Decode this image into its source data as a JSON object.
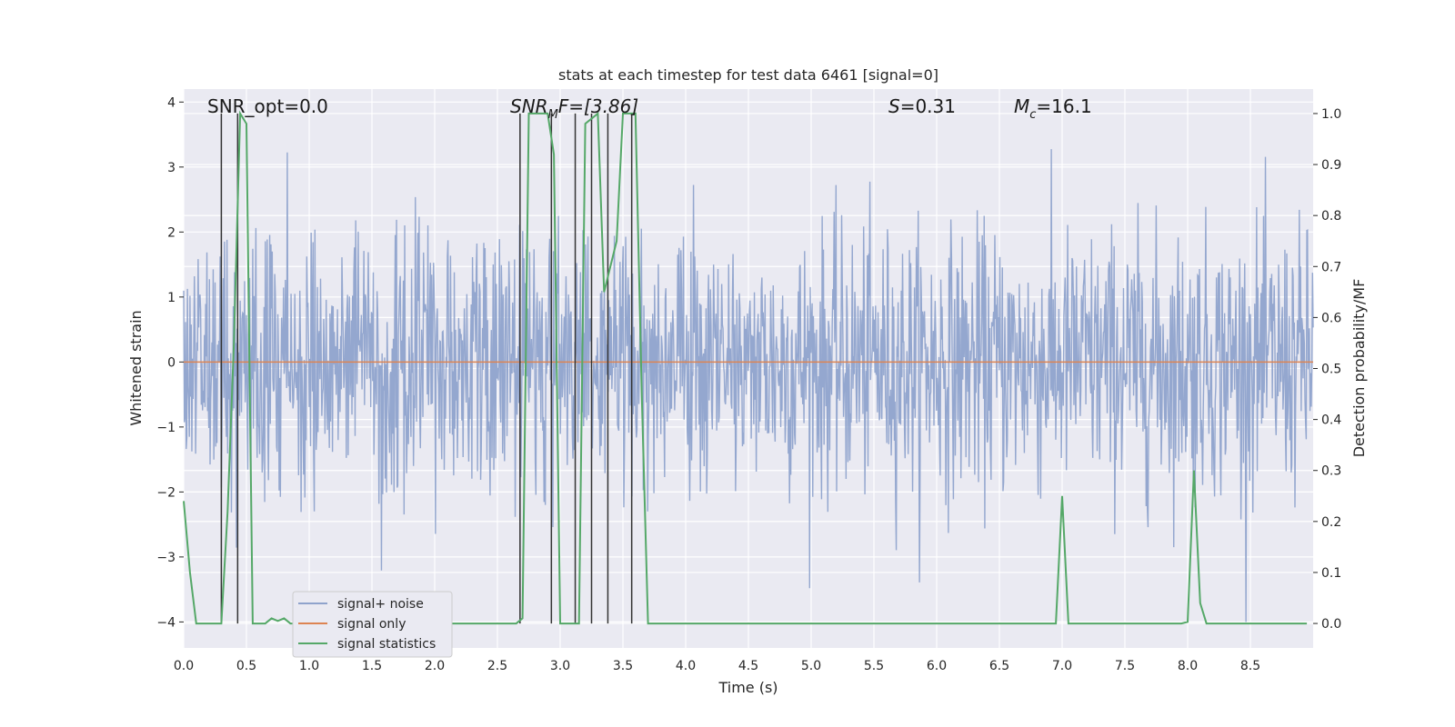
{
  "chart_data": {
    "type": "line",
    "title": "stats at each timestep for test data 6461 [signal=0]",
    "xlabel": "Time (s)",
    "ylabel": "Whitened strain",
    "ylabel_right": "Detection probability/MF",
    "xlim": [
      0.0,
      9.0
    ],
    "ylim": [
      -4.4,
      4.2
    ],
    "ylim_right": [
      -0.048,
      1.048
    ],
    "xticks": [
      "0.0",
      "0.5",
      "1.0",
      "1.5",
      "2.0",
      "2.5",
      "3.0",
      "3.5",
      "4.0",
      "4.5",
      "5.0",
      "5.5",
      "6.0",
      "6.5",
      "7.0",
      "7.5",
      "8.0",
      "8.5"
    ],
    "yticks": [
      "−4",
      "−3",
      "−2",
      "−1",
      "0",
      "1",
      "2",
      "3",
      "4"
    ],
    "yticks_right": [
      "0.0",
      "0.1",
      "0.2",
      "0.3",
      "0.4",
      "0.5",
      "0.6",
      "0.7",
      "0.8",
      "0.9",
      "1.0"
    ],
    "grid": true,
    "annotations": {
      "snr_opt": "SNR_opt=0.0",
      "snr_mf_main": "SNR",
      "snr_mf_sub": "M",
      "snr_mf_rest": "F=[3.86]",
      "s_main": "S",
      "s_rest": "=0.31",
      "mc_main": "M",
      "mc_sub": "c",
      "mc_rest": "=16.1"
    },
    "legend": {
      "placement": "lower-left",
      "entries": [
        "signal+ noise",
        "signal only",
        "signal statistics"
      ]
    },
    "series": [
      {
        "name": "signal+ noise",
        "color": "#8fa3cc",
        "kind": "whitened noise, approx. ±2 sigma, peaks to ±3.5",
        "n_samples": 1800,
        "sigma": 1.0
      },
      {
        "name": "signal only",
        "color": "#dd8452",
        "values_const": 0.0
      },
      {
        "name": "signal statistics",
        "color": "#55a868",
        "axis": "right",
        "x": [
          0.0,
          0.05,
          0.1,
          0.15,
          0.2,
          0.25,
          0.3,
          0.35,
          0.4,
          0.45,
          0.5,
          0.55,
          0.6,
          0.65,
          0.7,
          0.75,
          0.8,
          0.85,
          0.9,
          0.95,
          1.0,
          1.05,
          1.1,
          1.15,
          1.2,
          1.25,
          1.3,
          1.35,
          1.4,
          1.45,
          1.5,
          1.55,
          1.6,
          1.65,
          1.7,
          1.75,
          1.8,
          1.85,
          1.9,
          1.95,
          2.0,
          2.05,
          2.1,
          2.15,
          2.2,
          2.25,
          2.3,
          2.35,
          2.4,
          2.45,
          2.5,
          2.55,
          2.6,
          2.65,
          2.7,
          2.75,
          2.8,
          2.85,
          2.9,
          2.95,
          3.0,
          3.05,
          3.1,
          3.15,
          3.2,
          3.25,
          3.3,
          3.35,
          3.4,
          3.45,
          3.5,
          3.55,
          3.6,
          3.65,
          3.7,
          3.75,
          3.8,
          3.85,
          3.9,
          3.95,
          4.0,
          4.05,
          4.1,
          4.15,
          4.2,
          4.25,
          4.3,
          4.35,
          4.4,
          4.45,
          4.5,
          4.55,
          4.6,
          4.65,
          4.7,
          4.75,
          4.8,
          4.85,
          4.9,
          4.95,
          5.0,
          5.05,
          5.1,
          5.15,
          5.2,
          5.25,
          5.3,
          5.35,
          5.4,
          5.45,
          5.5,
          5.55,
          5.6,
          5.65,
          5.7,
          5.75,
          5.8,
          5.85,
          5.9,
          5.95,
          6.0,
          6.05,
          6.1,
          6.15,
          6.2,
          6.25,
          6.3,
          6.35,
          6.4,
          6.45,
          6.5,
          6.55,
          6.6,
          6.65,
          6.7,
          6.75,
          6.8,
          6.85,
          6.9,
          6.95,
          7.0,
          7.05,
          7.1,
          7.15,
          7.2,
          7.25,
          7.3,
          7.35,
          7.4,
          7.45,
          7.5,
          7.55,
          7.6,
          7.65,
          7.7,
          7.75,
          7.8,
          7.85,
          7.9,
          7.95,
          8.0,
          8.05,
          8.1,
          8.15,
          8.2,
          8.25,
          8.3,
          8.35,
          8.4,
          8.45,
          8.5,
          8.55,
          8.6,
          8.65,
          8.7,
          8.75,
          8.8,
          8.85,
          8.9,
          8.95
        ],
        "values": [
          0.24,
          0.1,
          0.0,
          0.0,
          0.0,
          0.0,
          0.0,
          0.22,
          0.55,
          1.0,
          0.98,
          0.0,
          0.0,
          0.0,
          0.01,
          0.005,
          0.01,
          0.0,
          0.0,
          0.0,
          0.0,
          0.0,
          0.0,
          0.0,
          0.0,
          0.0,
          0.0,
          0.0,
          0.0,
          0.0,
          0.0,
          0.0,
          0.0,
          0.0,
          0.0,
          0.0,
          0.0,
          0.0,
          0.0,
          0.0,
          0.0,
          0.0,
          0.0,
          0.0,
          0.0,
          0.0,
          0.0,
          0.0,
          0.0,
          0.0,
          0.0,
          0.0,
          0.0,
          0.0,
          0.01,
          1.0,
          1.0,
          1.0,
          1.0,
          0.92,
          0.0,
          0.0,
          0.0,
          0.0,
          0.98,
          0.99,
          1.0,
          0.65,
          0.7,
          0.75,
          1.0,
          1.0,
          1.0,
          0.45,
          0.0,
          0.0,
          0.0,
          0.0,
          0.0,
          0.0,
          0.0,
          0.0,
          0.0,
          0.0,
          0.0,
          0.0,
          0.0,
          0.0,
          0.0,
          0.0,
          0.0,
          0.0,
          0.0,
          0.0,
          0.0,
          0.0,
          0.0,
          0.0,
          0.0,
          0.0,
          0.0,
          0.0,
          0.0,
          0.0,
          0.0,
          0.0,
          0.0,
          0.0,
          0.0,
          0.0,
          0.0,
          0.0,
          0.0,
          0.0,
          0.0,
          0.0,
          0.0,
          0.0,
          0.0,
          0.0,
          0.0,
          0.0,
          0.0,
          0.0,
          0.0,
          0.0,
          0.0,
          0.0,
          0.0,
          0.0,
          0.0,
          0.0,
          0.0,
          0.0,
          0.0,
          0.0,
          0.0,
          0.0,
          0.0,
          0.0,
          0.25,
          0.0,
          0.0,
          0.0,
          0.0,
          0.0,
          0.0,
          0.0,
          0.0,
          0.0,
          0.0,
          0.0,
          0.0,
          0.0,
          0.0,
          0.0,
          0.0,
          0.0,
          0.0,
          0.0,
          0.003,
          0.3,
          0.04,
          0.0,
          0.0,
          0.0,
          0.0,
          0.0,
          0.0,
          0.0,
          0.0,
          0.0,
          0.0,
          0.0,
          0.0,
          0.0,
          0.0,
          0.0,
          0.0,
          0.0
        ]
      }
    ],
    "vlines": [
      0.3,
      0.43,
      2.68,
      2.93,
      3.12,
      3.25,
      3.38,
      3.57
    ],
    "vline_color": "#333333"
  }
}
